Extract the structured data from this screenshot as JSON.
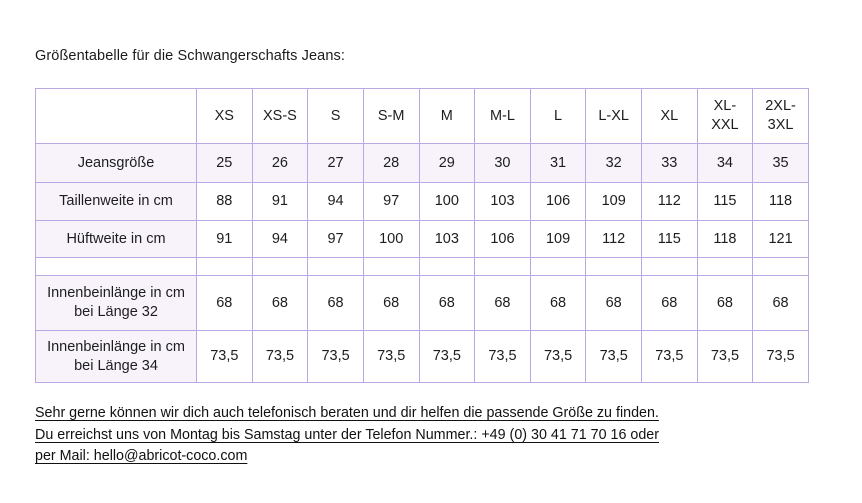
{
  "page": {
    "title": "Größentabelle für die Schwangerschafts Jeans:"
  },
  "size_table": {
    "corner_label": "",
    "columns": [
      "XS",
      "XS-S",
      "S",
      "S-M",
      "M",
      "M-L",
      "L",
      "L-XL",
      "XL",
      "XL-XXL",
      "2XL-3XL"
    ],
    "rows": [
      {
        "label": "Jeansgröße",
        "highlighted": true,
        "spacer": false,
        "values": [
          "25",
          "26",
          "27",
          "28",
          "29",
          "30",
          "31",
          "32",
          "33",
          "34",
          "35"
        ]
      },
      {
        "label": "Taillenweite in cm",
        "highlighted": false,
        "spacer": false,
        "values": [
          "88",
          "91",
          "94",
          "97",
          "100",
          "103",
          "106",
          "109",
          "112",
          "115",
          "118"
        ]
      },
      {
        "label": "Hüftweite in cm",
        "highlighted": false,
        "spacer": false,
        "values": [
          "91",
          "94",
          "97",
          "100",
          "103",
          "106",
          "109",
          "112",
          "115",
          "118",
          "121"
        ]
      },
      {
        "label": "",
        "highlighted": false,
        "spacer": true,
        "values": [
          "",
          "",
          "",
          "",
          "",
          "",
          "",
          "",
          "",
          "",
          ""
        ]
      },
      {
        "label": "Innenbeinlänge in cm bei Länge 32",
        "highlighted": false,
        "spacer": false,
        "values": [
          "68",
          "68",
          "68",
          "68",
          "68",
          "68",
          "68",
          "68",
          "68",
          "68",
          "68"
        ]
      },
      {
        "label": "Innenbeinlänge in cm bei Länge 34",
        "highlighted": false,
        "spacer": false,
        "values": [
          "73,5",
          "73,5",
          "73,5",
          "73,5",
          "73,5",
          "73,5",
          "73,5",
          "73,5",
          "73,5",
          "73,5",
          "73,5"
        ]
      }
    ]
  },
  "footer": {
    "lines": [
      "Sehr gerne können wir dich auch telefonisch beraten und dir helfen die passende Größe zu finden.",
      "Du erreichst uns von Montag bis Samstag unter der Telefon Nummer.: +49 (0) 30 41 71 70 16 oder",
      "per Mail: hello@abricot-coco.com"
    ],
    "phone": "+49 (0) 30 41 71 70 16",
    "email": "hello@abricot-coco.com"
  },
  "colors": {
    "table_border": "#b9a8e4",
    "row_tint": "#f8f3fb",
    "text": "#1d1d1f"
  }
}
